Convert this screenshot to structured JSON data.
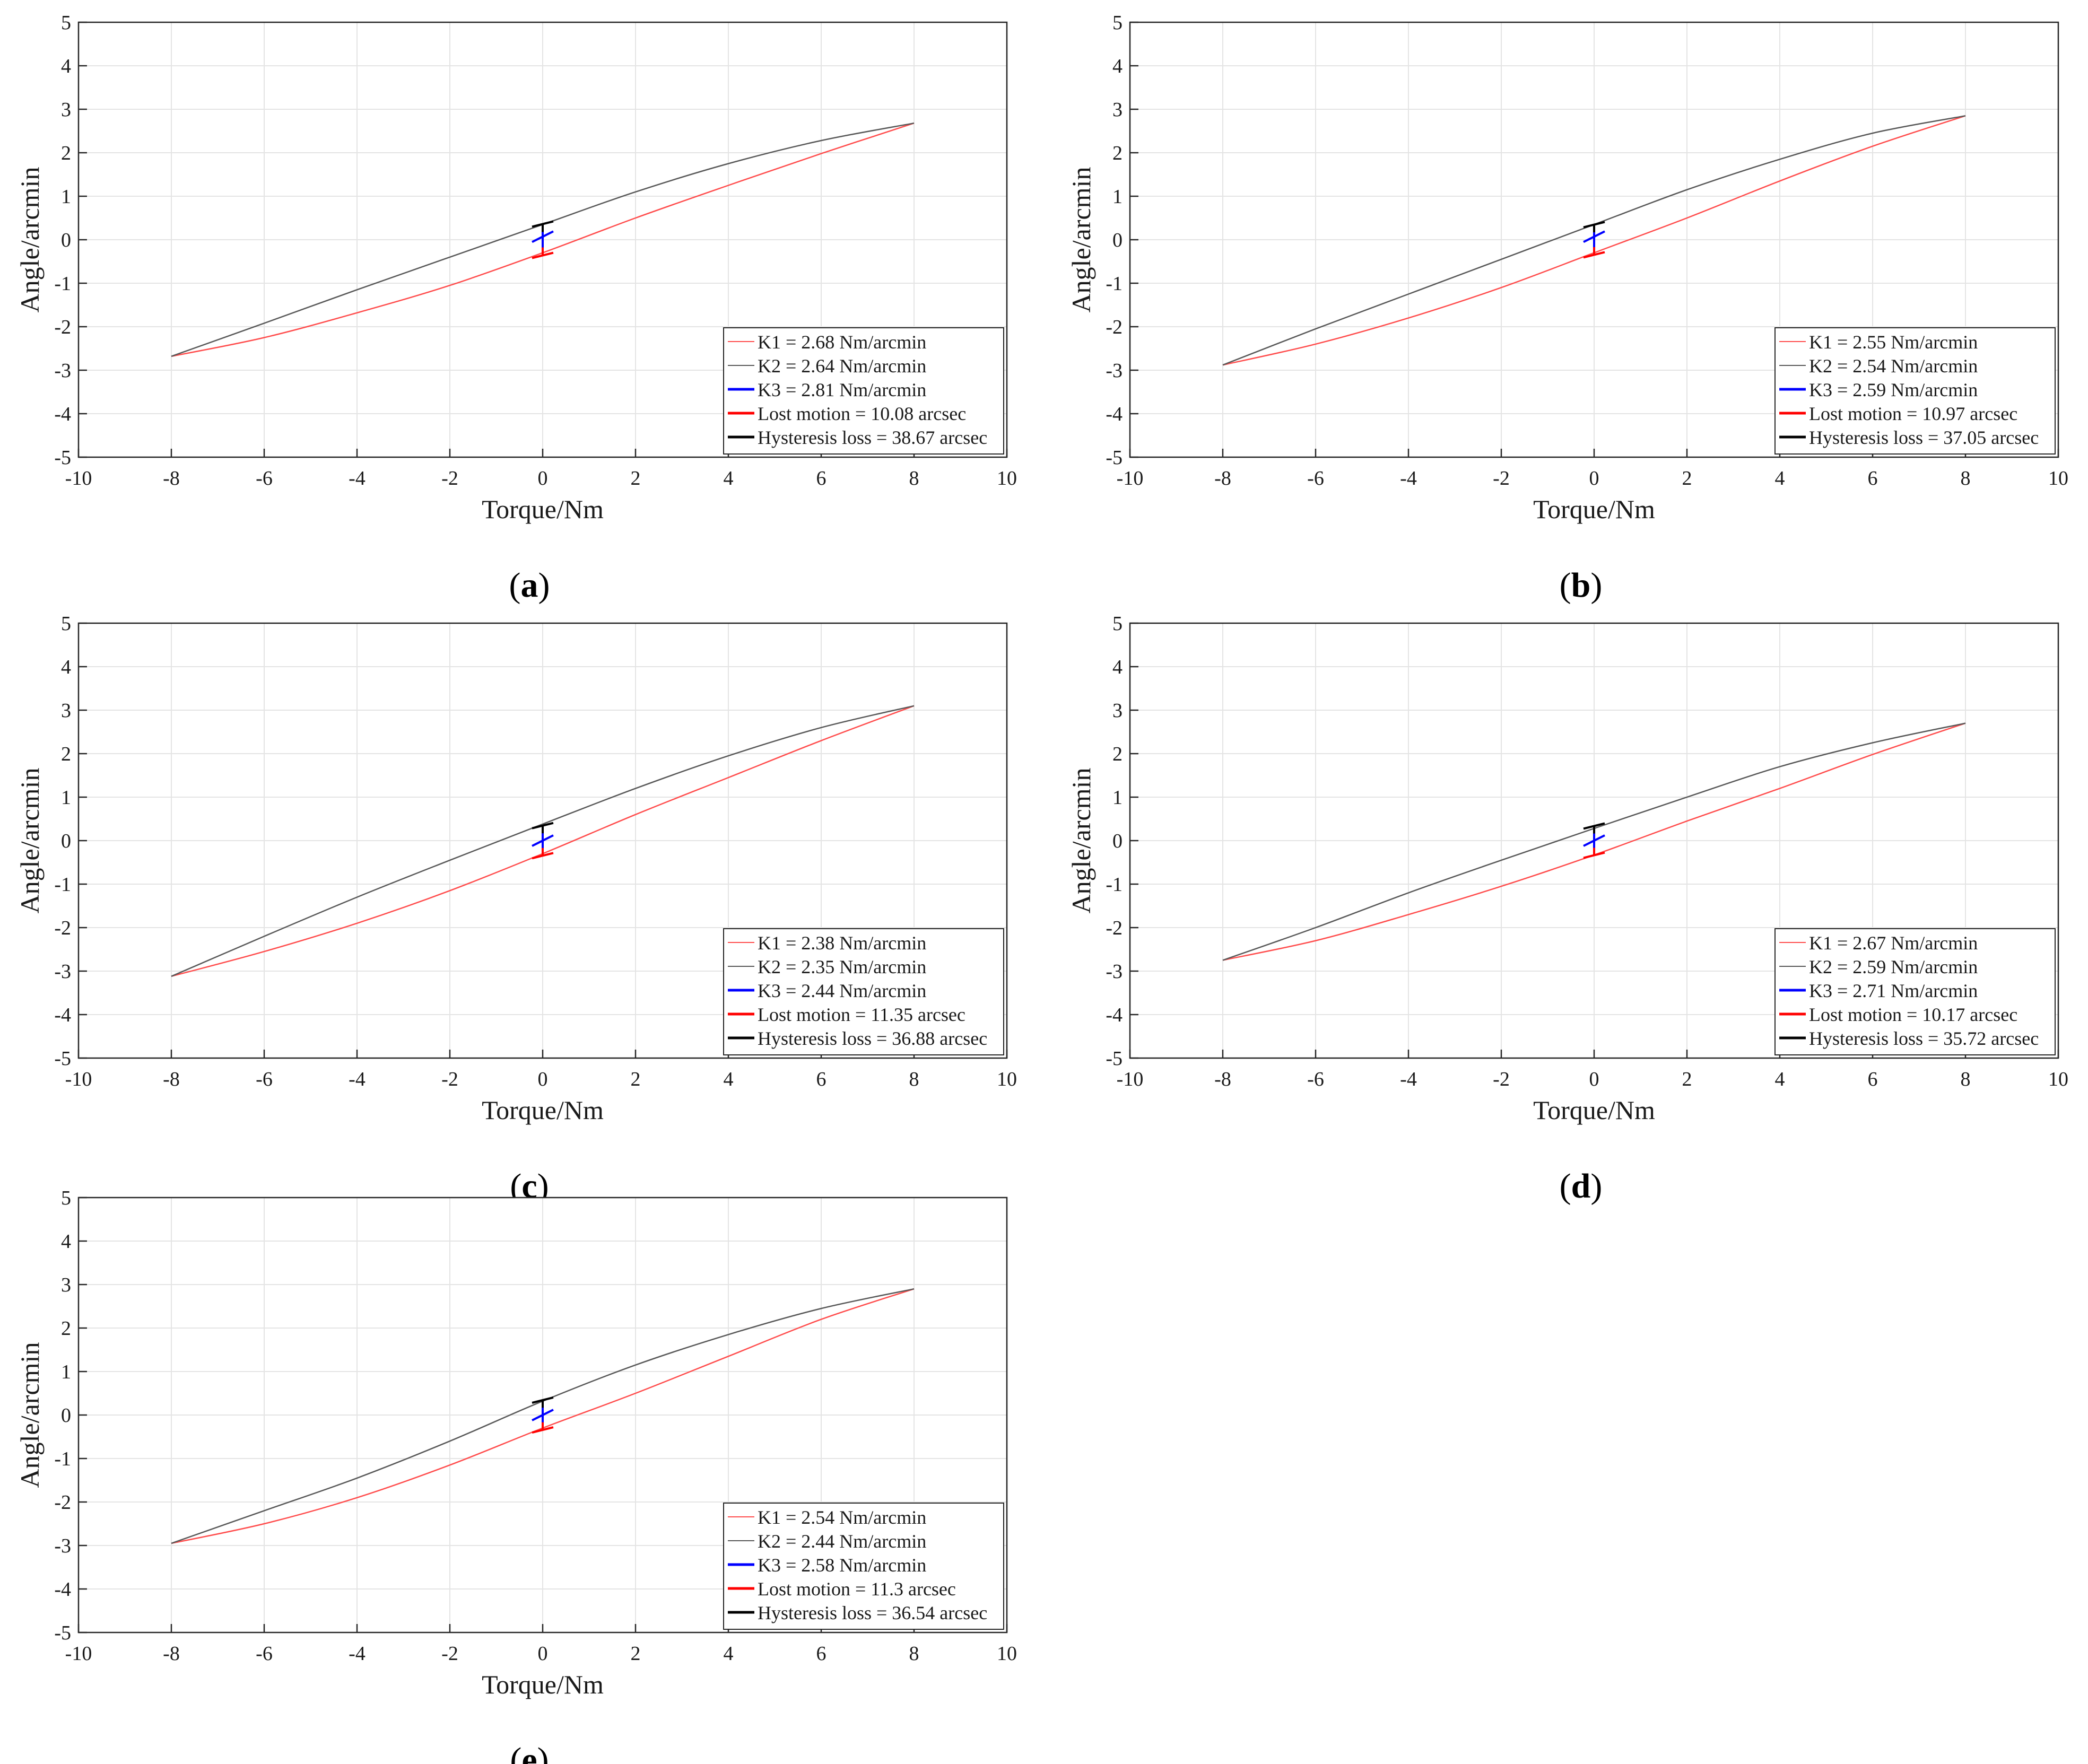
{
  "figure": {
    "axis": {
      "xlabel": "Torque/Nm",
      "ylabel": "Angle/arcmin",
      "xlim": [
        -10,
        10
      ],
      "ylim": [
        -5,
        5
      ],
      "xticks": [
        -10,
        -8,
        -6,
        -4,
        -2,
        0,
        2,
        4,
        6,
        8,
        10
      ],
      "yticks": [
        -5,
        -4,
        -3,
        -2,
        -1,
        0,
        1,
        2,
        3,
        4,
        5
      ],
      "grid": true,
      "legend": "bottom-right"
    },
    "colors": {
      "k1": "#ff4d4d",
      "k2": "#595959",
      "k3": "#0000ff",
      "lost": "#ff0000",
      "hyst": "#000000",
      "grid": "#e4e4e4"
    }
  },
  "chart_data": [
    {
      "type": "line",
      "caption": "(a)",
      "caption_letter": "a",
      "paren_open": "(",
      "paren_close": ")",
      "title": "",
      "xlabel": "Torque/Nm",
      "ylabel": "Angle/arcmin",
      "xlim": [
        -10,
        10
      ],
      "ylim": [
        -5,
        5
      ],
      "x": [
        -8,
        -6,
        -4,
        -2,
        0,
        2,
        4,
        6,
        8
      ],
      "series": [
        {
          "name": "K1 = 2.68 Nm/arcmin",
          "values": [
            -2.68,
            -2.25,
            -1.68,
            -1.05,
            -0.3,
            0.5,
            1.25,
            1.98,
            2.68
          ]
        },
        {
          "name": "K2 = 2.64 Nm/arcmin",
          "values": [
            -2.68,
            -1.92,
            -1.15,
            -0.4,
            0.35,
            1.1,
            1.75,
            2.28,
            2.68
          ]
        }
      ],
      "k3": 0.07,
      "lost_half": 0.084,
      "hyst_half": 0.322,
      "legend": [
        "K1 = 2.68 Nm/arcmin",
        "K2 = 2.64 Nm/arcmin",
        "K3 = 2.81 Nm/arcmin",
        "Lost motion = 10.08 arcsec",
        "Hysteresis loss = 38.67 arcsec"
      ]
    },
    {
      "type": "line",
      "caption": "(b)",
      "caption_letter": "b",
      "paren_open": "(",
      "paren_close": ")",
      "title": "",
      "xlabel": "Torque/Nm",
      "ylabel": "Angle/arcmin",
      "xlim": [
        -10,
        10
      ],
      "ylim": [
        -5,
        5
      ],
      "x": [
        -8,
        -6,
        -4,
        -2,
        0,
        2,
        4,
        6,
        8
      ],
      "series": [
        {
          "name": "K1 = 2.55 Nm/arcmin",
          "values": [
            -2.88,
            -2.4,
            -1.8,
            -1.1,
            -0.3,
            0.5,
            1.35,
            2.15,
            2.85
          ]
        },
        {
          "name": "K2 = 2.54 Nm/arcmin",
          "values": [
            -2.88,
            -2.05,
            -1.25,
            -0.45,
            0.35,
            1.15,
            1.85,
            2.45,
            2.85
          ]
        }
      ],
      "k3": 0.07,
      "lost_half": 0.091,
      "hyst_half": 0.309,
      "legend": [
        "K1 = 2.55 Nm/arcmin",
        "K2 = 2.54 Nm/arcmin",
        "K3 = 2.59 Nm/arcmin",
        "Lost motion = 10.97 arcsec",
        "Hysteresis loss = 37.05 arcsec"
      ]
    },
    {
      "type": "line",
      "caption": "(c)",
      "caption_letter": "c",
      "paren_open": "(",
      "paren_close": ")",
      "title": "",
      "xlabel": "Torque/Nm",
      "ylabel": "Angle/arcmin",
      "xlim": [
        -10,
        10
      ],
      "ylim": [
        -5,
        5
      ],
      "x": [
        -8,
        -6,
        -4,
        -2,
        0,
        2,
        4,
        6,
        8
      ],
      "series": [
        {
          "name": "K1 = 2.38 Nm/arcmin",
          "values": [
            -3.12,
            -2.55,
            -1.9,
            -1.15,
            -0.3,
            0.6,
            1.45,
            2.3,
            3.1
          ]
        },
        {
          "name": "K2 = 2.35 Nm/arcmin",
          "values": [
            -3.12,
            -2.2,
            -1.3,
            -0.45,
            0.38,
            1.2,
            1.95,
            2.6,
            3.1
          ]
        }
      ],
      "k3": 0.0,
      "lost_half": 0.095,
      "hyst_half": 0.307,
      "legend": [
        "K1 = 2.38 Nm/arcmin",
        "K2 = 2.35 Nm/arcmin",
        "K3 = 2.44 Nm/arcmin",
        "Lost motion = 11.35 arcsec",
        "Hysteresis loss = 36.88 arcsec"
      ]
    },
    {
      "type": "line",
      "caption": "(d)",
      "caption_letter": "d",
      "paren_open": "(",
      "paren_close": ")",
      "title": "",
      "xlabel": "Torque/Nm",
      "ylabel": "Angle/arcmin",
      "xlim": [
        -10,
        10
      ],
      "ylim": [
        -5,
        5
      ],
      "x": [
        -8,
        -6,
        -4,
        -2,
        0,
        2,
        4,
        6,
        8
      ],
      "series": [
        {
          "name": "K1 = 2.67 Nm/arcmin",
          "values": [
            -2.75,
            -2.3,
            -1.7,
            -1.05,
            -0.33,
            0.45,
            1.2,
            1.98,
            2.7
          ]
        },
        {
          "name": "K2 = 2.59 Nm/arcmin",
          "values": [
            -2.75,
            -2.0,
            -1.2,
            -0.45,
            0.28,
            1.0,
            1.7,
            2.25,
            2.7
          ]
        }
      ],
      "k3": 0.0,
      "lost_half": 0.085,
      "hyst_half": 0.298,
      "legend": [
        "K1 = 2.67 Nm/arcmin",
        "K2 = 2.59 Nm/arcmin",
        "K3 = 2.71 Nm/arcmin",
        "Lost motion = 10.17 arcsec",
        "Hysteresis loss = 35.72 arcsec"
      ]
    },
    {
      "type": "line",
      "caption": "(e)",
      "caption_letter": "e",
      "paren_open": "(",
      "paren_close": ")",
      "title": "",
      "xlabel": "Torque/Nm",
      "ylabel": "Angle/arcmin",
      "xlim": [
        -10,
        10
      ],
      "ylim": [
        -5,
        5
      ],
      "x": [
        -8,
        -6,
        -4,
        -2,
        0,
        2,
        4,
        6,
        8
      ],
      "series": [
        {
          "name": "K1 = 2.54 Nm/arcmin",
          "values": [
            -2.95,
            -2.5,
            -1.9,
            -1.15,
            -0.3,
            0.5,
            1.35,
            2.2,
            2.9
          ]
        },
        {
          "name": "K2 = 2.44 Nm/arcmin",
          "values": [
            -2.95,
            -2.2,
            -1.45,
            -0.6,
            0.32,
            1.15,
            1.85,
            2.45,
            2.9
          ]
        }
      ],
      "k3": 0.0,
      "lost_half": 0.094,
      "hyst_half": 0.305,
      "legend": [
        "K1 = 2.54 Nm/arcmin",
        "K2 = 2.44 Nm/arcmin",
        "K3 = 2.58 Nm/arcmin",
        "Lost motion = 11.3 arcsec",
        "Hysteresis loss = 36.54 arcsec"
      ]
    }
  ]
}
